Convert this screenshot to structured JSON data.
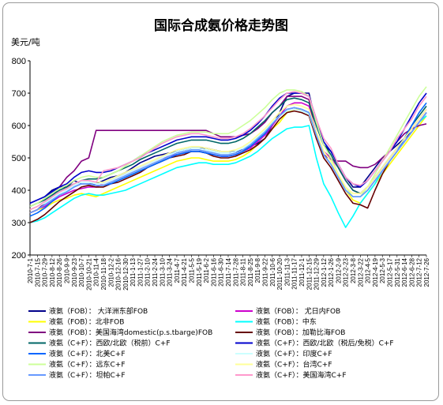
{
  "chart_data": {
    "type": "line",
    "title": "国际合成氨价格走势图",
    "ylabel": "美元/吨",
    "xlabel": "",
    "ylim": [
      200,
      800
    ],
    "yticks": [
      200,
      300,
      400,
      500,
      600,
      700,
      800
    ],
    "grid": false,
    "legend_position": "bottom",
    "categories": [
      "2010-7-1",
      "2010-7-15",
      "2010-7-29",
      "2010-8-12",
      "2010-8-26",
      "2010-9-9",
      "2010-9-23",
      "2010-10-7",
      "2010-10-21",
      "2010-11-4",
      "2010-11-18",
      "2010-12-2",
      "2010-12-16",
      "2010-12-30",
      "2011-1-13",
      "2011-1-27",
      "2011-2-10",
      "2011-2-24",
      "2011-3-10",
      "2011-3-24",
      "2011-4-7",
      "2011-4-21",
      "2011-5-5",
      "2011-5-19",
      "2011-6-2",
      "2011-6-16",
      "2011-6-30",
      "2011-7-14",
      "2011-7-28",
      "2011-8-11",
      "2011-8-25",
      "2011-9-8",
      "2011-9-22",
      "2011-10-6",
      "2011-10-20",
      "2011-11-3",
      "2011-11-17",
      "2011-12-1",
      "2011-12-15",
      "2011-12-29",
      "2012-1-12",
      "2012-1-26",
      "2012-2-9",
      "2012-2-23",
      "2012-3-8",
      "2012-3-22",
      "2012-4-5",
      "2012-4-19",
      "2012-5-3",
      "2012-5-17",
      "2012-5-31",
      "2012-6-14",
      "2012-6-28",
      "2012-7-12",
      "2012-7-26"
    ],
    "series": [
      {
        "name": "液氨（FOB）： 大洋洲东部FOB",
        "color": "#00008b",
        "values": [
          360,
          370,
          380,
          400,
          410,
          410,
          430,
          420,
          420,
          420,
          430,
          440,
          445,
          455,
          470,
          485,
          495,
          505,
          510,
          515,
          520,
          525,
          530,
          530,
          530,
          525,
          520,
          520,
          520,
          525,
          535,
          545,
          560,
          600,
          640,
          690,
          700,
          700,
          700,
          600,
          540,
          520,
          480,
          440,
          410,
          410,
          440,
          470,
          500,
          520,
          540,
          560,
          580,
          610,
          640
        ]
      },
      {
        "name": "液氨（FOB）： 尤日内FOB",
        "color": "#cc00cc",
        "values": [
          330,
          340,
          350,
          365,
          380,
          390,
          400,
          405,
          410,
          410,
          420,
          430,
          440,
          450,
          460,
          470,
          480,
          490,
          500,
          505,
          510,
          515,
          520,
          520,
          515,
          510,
          505,
          505,
          510,
          520,
          530,
          550,
          570,
          600,
          630,
          660,
          670,
          670,
          660,
          580,
          520,
          500,
          470,
          430,
          400,
          390,
          410,
          440,
          470,
          500,
          530,
          560,
          590,
          620,
          650
        ]
      },
      {
        "name": "液氨（FOB）：北非FOB",
        "color": "#ffff00",
        "values": [
          330,
          340,
          345,
          360,
          370,
          375,
          385,
          390,
          385,
          380,
          390,
          400,
          410,
          420,
          430,
          440,
          450,
          460,
          470,
          480,
          490,
          495,
          500,
          500,
          495,
          490,
          490,
          490,
          495,
          505,
          520,
          540,
          560,
          590,
          610,
          640,
          650,
          650,
          640,
          580,
          520,
          490,
          450,
          400,
          370,
          360,
          390,
          420,
          450,
          480,
          510,
          540,
          570,
          600,
          630
        ]
      },
      {
        "name": "液氨（FOB）：中东",
        "color": "#00ffff",
        "values": [
          300,
          305,
          315,
          330,
          345,
          360,
          375,
          385,
          390,
          385,
          385,
          390,
          395,
          400,
          410,
          420,
          430,
          440,
          450,
          460,
          470,
          475,
          480,
          485,
          485,
          480,
          480,
          480,
          485,
          495,
          505,
          520,
          540,
          560,
          575,
          590,
          595,
          595,
          600,
          500,
          420,
          380,
          330,
          285,
          320,
          360,
          390,
          420,
          460,
          490,
          520,
          550,
          580,
          610,
          630
        ]
      },
      {
        "name": "液氨（FOB）：美国海湾domestic(p.s.tbarge)FOB",
        "color": "#800080",
        "values": [
          330,
          340,
          360,
          380,
          410,
          440,
          460,
          490,
          500,
          585,
          585,
          585,
          585,
          585,
          585,
          585,
          585,
          585,
          585,
          585,
          585,
          585,
          585,
          585,
          585,
          575,
          565,
          565,
          565,
          570,
          575,
          590,
          610,
          640,
          660,
          690,
          690,
          690,
          680,
          560,
          510,
          495,
          490,
          490,
          475,
          470,
          470,
          480,
          500,
          520,
          550,
          575,
          590,
          600,
          605
        ]
      },
      {
        "name": "液氨（FOB）：加勒比海FOB",
        "color": "#660000",
        "values": [
          300,
          310,
          325,
          345,
          365,
          380,
          395,
          410,
          415,
          410,
          410,
          420,
          425,
          435,
          445,
          455,
          470,
          480,
          490,
          500,
          505,
          510,
          520,
          520,
          515,
          505,
          500,
          500,
          505,
          515,
          525,
          540,
          560,
          590,
          620,
          640,
          645,
          640,
          630,
          560,
          500,
          470,
          430,
          390,
          360,
          355,
          345,
          400,
          450,
          490,
          520,
          550,
          580,
          610,
          640
        ]
      },
      {
        "name": "液氨（C+F）：西欧/北欧（税前）C+F",
        "color": "#006666",
        "values": [
          350,
          360,
          370,
          385,
          400,
          410,
          420,
          430,
          435,
          435,
          440,
          450,
          460,
          470,
          480,
          495,
          505,
          515,
          525,
          535,
          545,
          550,
          555,
          555,
          555,
          550,
          545,
          545,
          550,
          560,
          575,
          595,
          615,
          640,
          660,
          680,
          685,
          680,
          670,
          600,
          540,
          510,
          470,
          430,
          400,
          390,
          410,
          440,
          470,
          500,
          530,
          560,
          600,
          630,
          660
        ]
      },
      {
        "name": "液氨（C+F）：西欧/北欧（税后/免税）C+F",
        "color": "#0000cc",
        "values": [
          360,
          370,
          380,
          395,
          410,
          420,
          440,
          455,
          460,
          455,
          455,
          460,
          470,
          480,
          490,
          505,
          515,
          525,
          535,
          545,
          555,
          560,
          565,
          565,
          565,
          560,
          555,
          555,
          560,
          570,
          585,
          605,
          630,
          660,
          685,
          700,
          700,
          700,
          690,
          620,
          550,
          520,
          480,
          440,
          420,
          410,
          430,
          460,
          490,
          520,
          550,
          590,
          630,
          670,
          700
        ]
      },
      {
        "name": "液氨（C+F）：北美C+F",
        "color": "#0066ff",
        "values": [
          320,
          330,
          345,
          365,
          385,
          395,
          410,
          420,
          420,
          415,
          415,
          420,
          430,
          440,
          450,
          460,
          470,
          480,
          490,
          500,
          510,
          515,
          520,
          520,
          515,
          510,
          505,
          505,
          510,
          520,
          535,
          555,
          575,
          605,
          630,
          650,
          655,
          650,
          640,
          570,
          510,
          480,
          440,
          400,
          380,
          380,
          400,
          430,
          460,
          490,
          520,
          560,
          600,
          640,
          670
        ]
      },
      {
        "name": "液氨（C+F）：印度C+F",
        "color": "#ccffff",
        "values": [
          340,
          350,
          360,
          375,
          390,
          400,
          415,
          425,
          425,
          420,
          420,
          430,
          440,
          450,
          460,
          470,
          480,
          490,
          500,
          510,
          520,
          525,
          530,
          530,
          525,
          520,
          515,
          515,
          520,
          530,
          545,
          565,
          585,
          610,
          630,
          645,
          650,
          645,
          635,
          570,
          510,
          480,
          440,
          400,
          380,
          380,
          400,
          430,
          460,
          490,
          520,
          550,
          580,
          610,
          640
        ]
      },
      {
        "name": "液氨（C+F）：远东C+F",
        "color": "#ccff99",
        "values": [
          350,
          360,
          375,
          390,
          405,
          415,
          430,
          440,
          445,
          440,
          440,
          450,
          460,
          475,
          490,
          505,
          520,
          535,
          550,
          560,
          570,
          575,
          580,
          580,
          580,
          575,
          575,
          575,
          585,
          600,
          615,
          635,
          655,
          680,
          700,
          710,
          710,
          705,
          690,
          610,
          540,
          500,
          450,
          410,
          380,
          380,
          410,
          450,
          490,
          530,
          570,
          610,
          650,
          690,
          720
        ]
      },
      {
        "name": "液氨（C+F）：台湾C+F",
        "color": "#ffff99",
        "values": [
          340,
          350,
          365,
          380,
          395,
          405,
          420,
          430,
          430,
          425,
          425,
          435,
          445,
          455,
          465,
          475,
          485,
          495,
          505,
          515,
          525,
          530,
          535,
          535,
          530,
          525,
          520,
          520,
          525,
          535,
          550,
          570,
          590,
          615,
          640,
          660,
          665,
          660,
          650,
          580,
          520,
          490,
          450,
          410,
          390,
          390,
          410,
          440,
          470,
          500,
          530,
          560,
          590,
          620,
          650
        ]
      },
      {
        "name": "液氨（C+F）：坦帕C+F",
        "color": "#6699ff",
        "values": [
          330,
          340,
          355,
          370,
          385,
          395,
          410,
          420,
          420,
          415,
          415,
          425,
          435,
          445,
          455,
          465,
          475,
          485,
          495,
          505,
          515,
          520,
          525,
          525,
          520,
          515,
          510,
          510,
          515,
          525,
          540,
          560,
          580,
          605,
          630,
          650,
          655,
          650,
          640,
          570,
          510,
          480,
          440,
          400,
          380,
          380,
          400,
          430,
          460,
          490,
          520,
          550,
          580,
          610,
          640
        ]
      },
      {
        "name": "液氨（C+F）：美国海湾C+F",
        "color": "#ff99cc",
        "values": [
          340,
          350,
          365,
          380,
          395,
          405,
          420,
          430,
          430,
          425,
          460,
          465,
          470,
          480,
          490,
          500,
          515,
          530,
          545,
          555,
          565,
          570,
          575,
          575,
          570,
          565,
          560,
          560,
          565,
          575,
          590,
          610,
          630,
          655,
          680,
          700,
          705,
          700,
          690,
          620,
          560,
          530,
          480,
          440,
          420,
          415,
          430,
          460,
          490,
          520,
          560,
          590,
          620,
          660,
          690
        ]
      }
    ]
  }
}
